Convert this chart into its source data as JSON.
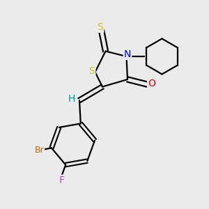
{
  "background_color": "#ebebeb",
  "bond_color": "#000000",
  "atom_colors": {
    "S": "#cccc00",
    "N": "#0000ee",
    "O": "#ee0000",
    "Br": "#bb6600",
    "F": "#cc44cc",
    "H": "#009999",
    "C": "#000000"
  }
}
